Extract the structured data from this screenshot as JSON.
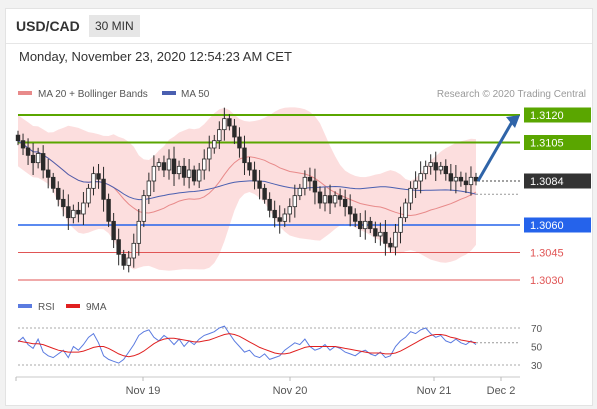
{
  "header": {
    "symbol": "USD/CAD",
    "timeframe": "30 MIN"
  },
  "datetime": "Monday, November 23, 2020 12:54:23 AM CET",
  "legend": {
    "ma20": "MA 20 + Bollinger Bands",
    "ma50": "MA 50",
    "credit": "Research © 2020 Trading Central",
    "rsi": "RSI",
    "ma9": "9MA"
  },
  "colors": {
    "candle": "#2a2a2a",
    "bollinger": "#fbd8d8",
    "ma20": "#e88a8a",
    "ma50": "#4a5fb0",
    "green": "#5aa600",
    "blue": "#2563eb",
    "red": "#e05555",
    "dark": "#333333",
    "arrow": "#2f64a8",
    "rsi": "#5b7be0",
    "ma9": "#e02020"
  },
  "chart_data": [
    {
      "type": "candlestick",
      "levels": [
        {
          "label": "1.3120",
          "value": 1.312,
          "color": "green"
        },
        {
          "label": "1.3105",
          "value": 1.3105,
          "color": "green"
        },
        {
          "label": "1.3084",
          "value": 1.3084,
          "color": "dark"
        },
        {
          "label": "1.3060",
          "value": 1.306,
          "color": "blue"
        },
        {
          "label": "1.3045",
          "value": 1.3045,
          "color": "red"
        },
        {
          "label": "1.3030",
          "value": 1.303,
          "color": "red"
        }
      ],
      "last_price": 1.3084,
      "arrow_target": 1.312,
      "x_labels": [
        "Nov 19",
        "Nov 20",
        "Nov 21",
        "Dec 2"
      ],
      "close": [
        1.3106,
        1.3102,
        1.3098,
        1.3094,
        1.3099,
        1.309,
        1.3086,
        1.308,
        1.3074,
        1.307,
        1.3064,
        1.3068,
        1.3066,
        1.3072,
        1.308,
        1.3088,
        1.3085,
        1.3074,
        1.3062,
        1.3052,
        1.3044,
        1.3038,
        1.3042,
        1.305,
        1.3062,
        1.3076,
        1.3084,
        1.3092,
        1.3094,
        1.309,
        1.3096,
        1.3088,
        1.3092,
        1.3086,
        1.309,
        1.3084,
        1.309,
        1.3096,
        1.3102,
        1.3106,
        1.3112,
        1.3118,
        1.3114,
        1.3108,
        1.3102,
        1.3094,
        1.309,
        1.3084,
        1.308,
        1.3074,
        1.3068,
        1.3064,
        1.3062,
        1.3066,
        1.307,
        1.3076,
        1.308,
        1.3086,
        1.3084,
        1.3078,
        1.3072,
        1.3076,
        1.3072,
        1.3076,
        1.3074,
        1.307,
        1.3066,
        1.3062,
        1.3058,
        1.3062,
        1.3058,
        1.3054,
        1.3056,
        1.305,
        1.3048,
        1.3056,
        1.3064,
        1.3072,
        1.308,
        1.3084,
        1.3088,
        1.3092,
        1.3094,
        1.309,
        1.3092,
        1.3088,
        1.3084,
        1.3086,
        1.3084,
        1.3082,
        1.3086,
        1.3084
      ]
    },
    {
      "type": "line",
      "title": "RSI",
      "ylim": [
        30,
        70
      ],
      "y_ticks": [
        "70",
        "50",
        "30"
      ],
      "series": [
        {
          "name": "RSI",
          "values": [
            55,
            60,
            52,
            48,
            58,
            44,
            40,
            38,
            42,
            46,
            38,
            50,
            46,
            52,
            60,
            64,
            54,
            40,
            36,
            34,
            32,
            36,
            44,
            52,
            62,
            66,
            68,
            60,
            56,
            62,
            58,
            52,
            58,
            50,
            56,
            52,
            58,
            62,
            64,
            66,
            70,
            72,
            64,
            56,
            50,
            44,
            46,
            40,
            38,
            42,
            36,
            38,
            40,
            46,
            50,
            54,
            52,
            58,
            50,
            46,
            48,
            52,
            46,
            50,
            48,
            44,
            42,
            40,
            44,
            46,
            42,
            40,
            44,
            38,
            40,
            50,
            56,
            60,
            66,
            64,
            68,
            70,
            64,
            60,
            62,
            56,
            54,
            58,
            54,
            52,
            56,
            52
          ]
        },
        {
          "name": "9MA",
          "values": [
            56,
            55,
            54,
            53,
            53,
            52,
            50,
            48,
            46,
            45,
            44,
            44,
            44,
            45,
            47,
            49,
            50,
            50,
            48,
            45,
            42,
            40,
            39,
            40,
            42,
            45,
            49,
            53,
            56,
            58,
            59,
            59,
            58,
            57,
            56,
            55,
            55,
            56,
            57,
            59,
            61,
            63,
            64,
            63,
            61,
            58,
            55,
            52,
            49,
            47,
            45,
            43,
            42,
            42,
            43,
            45,
            47,
            49,
            50,
            50,
            50,
            50,
            50,
            50,
            49,
            48,
            47,
            46,
            45,
            44,
            43,
            43,
            43,
            42,
            42,
            43,
            45,
            48,
            51,
            54,
            57,
            60,
            62,
            63,
            63,
            62,
            60,
            59,
            57,
            56,
            55,
            54
          ]
        }
      ]
    }
  ]
}
